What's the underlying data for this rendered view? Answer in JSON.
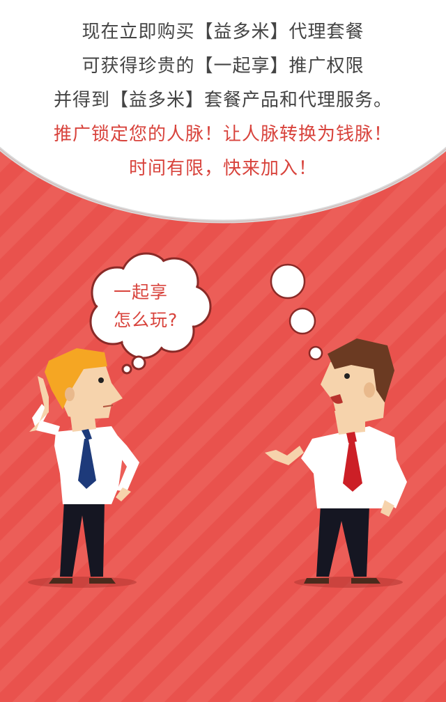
{
  "intro": {
    "line1": "现在立即购买【益多米】代理套餐",
    "line2": "可获得珍贵的【一起享】推广权限",
    "line3": "并得到【益多米】套餐产品和代理服务。",
    "line4": "推广锁定您的人脉！让人脉转换为钱脉！",
    "line5": "时间有限，快来加入！"
  },
  "thought": {
    "line1": "一起享",
    "line2": "怎么玩?"
  },
  "colors": {
    "background": "#e9524d",
    "stripe": "#ec5e58",
    "dark_text": "#444444",
    "accent_text": "#d8433c",
    "bubble": "#ffffff"
  },
  "icons": [
    "speech-bubble",
    "thought-bubble",
    "man-thinking",
    "man-talking"
  ]
}
